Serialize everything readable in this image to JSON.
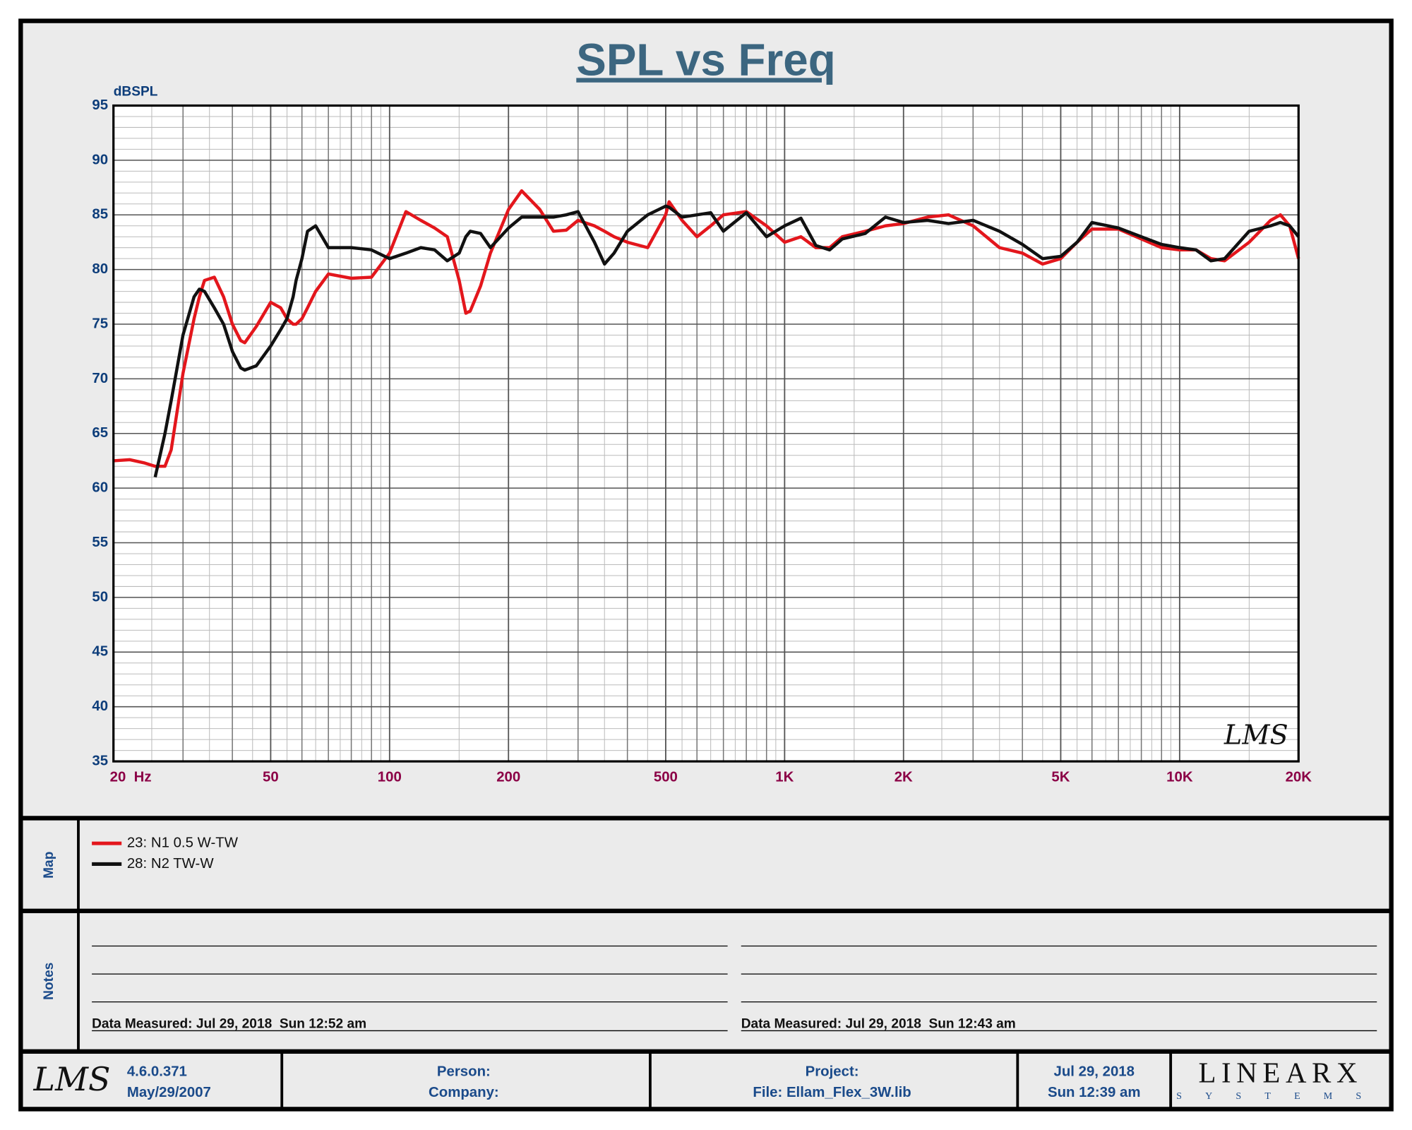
{
  "chart_data": {
    "type": "line",
    "title": "SPL vs Freq",
    "y_label": "dBSPL",
    "xscale": "log",
    "grid": true,
    "minor_grid": true,
    "xlim": [
      20,
      20000
    ],
    "ylim": [
      35,
      95
    ],
    "xticks": [
      {
        "value": 20,
        "label": "20  Hz"
      },
      50,
      100,
      200,
      500,
      {
        "value": 1000,
        "label": "1K"
      },
      {
        "value": 2000,
        "label": "2K"
      },
      {
        "value": 5000,
        "label": "5K"
      },
      {
        "value": 10000,
        "label": "10K"
      },
      {
        "value": 20000,
        "label": "20K"
      }
    ],
    "yticks": [
      35,
      40,
      45,
      50,
      55,
      60,
      65,
      70,
      75,
      80,
      85,
      90,
      95
    ],
    "x": [
      20,
      22,
      24,
      25.5,
      27,
      28,
      30,
      32,
      33,
      34,
      36,
      38,
      40,
      42,
      43,
      46,
      50,
      53,
      55,
      57,
      58,
      60,
      62,
      65,
      70,
      80,
      90,
      100,
      110,
      120,
      130,
      140,
      150,
      156,
      160,
      170,
      180,
      200,
      216,
      240,
      260,
      280,
      300,
      330,
      350,
      370,
      400,
      450,
      500,
      510,
      550,
      600,
      650,
      700,
      800,
      900,
      1000,
      1100,
      1200,
      1300,
      1400,
      1600,
      1800,
      2000,
      2300,
      2600,
      3000,
      3500,
      4000,
      4500,
      5000,
      5500,
      6000,
      7000,
      8000,
      9000,
      10000,
      11000,
      12000,
      13000,
      15000,
      17000,
      18000,
      19000,
      20000
    ],
    "series": [
      {
        "name": "23: N1 0.5 W-TW",
        "color": "#e3161c",
        "values": [
          62.5,
          62.6,
          62.3,
          62,
          62,
          63.5,
          70.5,
          75.5,
          77.5,
          79,
          79.3,
          77.5,
          75,
          73.5,
          73.3,
          74.8,
          77,
          76.5,
          75.5,
          75,
          75,
          75.5,
          76.5,
          78,
          79.6,
          79.2,
          79.3,
          81.5,
          85.3,
          84.5,
          83.8,
          83,
          79,
          76,
          76.2,
          78.5,
          81.5,
          85.5,
          87.2,
          85.5,
          83.5,
          83.6,
          84.5,
          84,
          83.5,
          83,
          82.5,
          82,
          85,
          86.2,
          84.5,
          83,
          84,
          85,
          85.3,
          84,
          82.5,
          83,
          82,
          82,
          83,
          83.5,
          84,
          84.2,
          84.8,
          85,
          84,
          82,
          81.5,
          80.5,
          81,
          82.5,
          83.7,
          83.7,
          82.8,
          82,
          81.8,
          81.8,
          81,
          80.8,
          82.5,
          84.5,
          85,
          84,
          81
        ]
      },
      {
        "name": "28: N2 TW-W",
        "color": "#111111",
        "values": [
          null,
          null,
          null,
          61,
          65,
          68,
          74,
          77.5,
          78.2,
          78,
          76.5,
          75,
          72.5,
          71,
          70.8,
          71.2,
          73,
          74.5,
          75.5,
          77.5,
          79,
          81,
          83.5,
          84,
          82,
          82,
          81.8,
          81,
          81.5,
          82,
          81.8,
          80.8,
          81.5,
          83,
          83.5,
          83.3,
          82,
          83.8,
          84.8,
          84.8,
          84.8,
          85,
          85.3,
          82.5,
          80.5,
          81.5,
          83.5,
          85,
          85.8,
          85.7,
          84.8,
          85,
          85.2,
          83.5,
          85.2,
          83,
          84,
          84.7,
          82.2,
          81.8,
          82.8,
          83.3,
          84.8,
          84.3,
          84.5,
          84.2,
          84.5,
          83.5,
          82.3,
          81,
          81.2,
          82.5,
          84.3,
          83.8,
          83,
          82.3,
          82,
          81.8,
          80.8,
          81,
          83.5,
          84,
          84.3,
          84,
          83
        ]
      }
    ]
  },
  "logo": "LMS",
  "map_label": "Map",
  "notes": {
    "label": "Notes",
    "measured": [
      "Data Measured: Jul 29, 2018  Sun 12:52 am",
      "Data Measured: Jul 29, 2018  Sun 12:43 am"
    ]
  },
  "footer": {
    "version": "4.6.0.371",
    "version_date": "May/29/2007",
    "person": "Person:",
    "company": "Company:",
    "project": "Project:",
    "file": "File: Ellam_Flex_3W.lib",
    "date": "Jul 29, 2018",
    "time": "Sun 12:39 am",
    "brand": "LINEARX",
    "brand_sub": "SYSTEMS"
  }
}
